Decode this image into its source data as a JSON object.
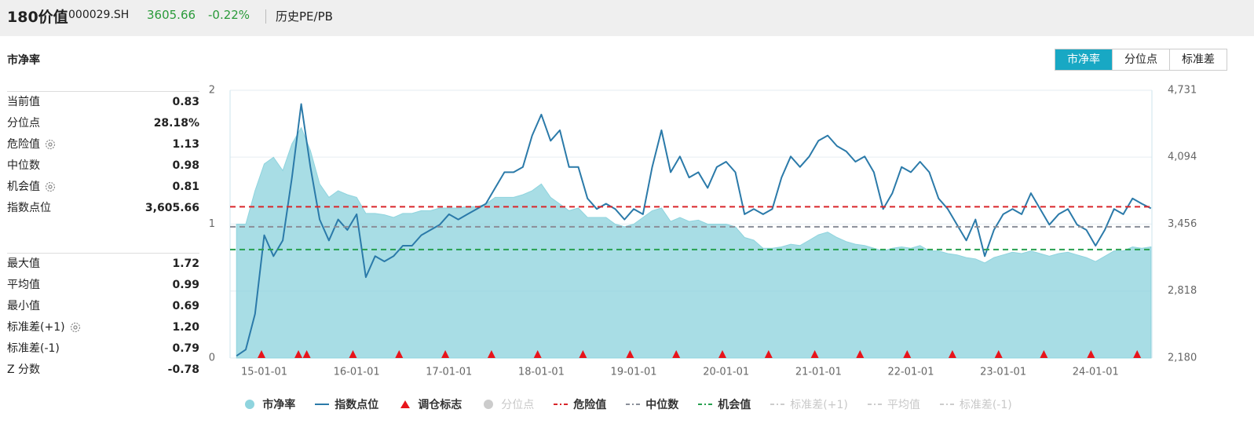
{
  "header": {
    "name": "180价值",
    "code": "000029.SH",
    "price": "3605.66",
    "change": "-0.22%",
    "link": "历史PE/PB"
  },
  "panel": {
    "title": "市净率",
    "tabs": [
      "市净率",
      "分位点",
      "标准差"
    ],
    "active_tab": 0,
    "stat_groups": [
      [
        {
          "label": "当前值",
          "value": "0.83",
          "gear": false
        },
        {
          "label": "分位点",
          "value": "28.18%",
          "gear": false
        },
        {
          "label": "危险值",
          "value": "1.13",
          "gear": true
        },
        {
          "label": "中位数",
          "value": "0.98",
          "gear": false
        },
        {
          "label": "机会值",
          "value": "0.81",
          "gear": true
        },
        {
          "label": "指数点位",
          "value": "3,605.66",
          "gear": false
        }
      ],
      [
        {
          "label": "最大值",
          "value": "1.72",
          "gear": false
        },
        {
          "label": "平均值",
          "value": "0.99",
          "gear": false
        },
        {
          "label": "最小值",
          "value": "0.69",
          "gear": false
        },
        {
          "label": "标准差(+1)",
          "value": "1.20",
          "gear": true
        },
        {
          "label": "标准差(-1)",
          "value": "0.79",
          "gear": false
        },
        {
          "label": "Z 分数",
          "value": "-0.78",
          "gear": false
        }
      ]
    ]
  },
  "chart_data": {
    "type": "area_line",
    "x": [
      2014.7,
      2014.8,
      2014.9,
      2015.0,
      2015.1,
      2015.2,
      2015.3,
      2015.4,
      2015.5,
      2015.6,
      2015.7,
      2015.8,
      2015.9,
      2016.0,
      2016.1,
      2016.2,
      2016.3,
      2016.4,
      2016.5,
      2016.6,
      2016.7,
      2016.8,
      2016.9,
      2017.0,
      2017.1,
      2017.2,
      2017.3,
      2017.4,
      2017.5,
      2017.6,
      2017.7,
      2017.8,
      2017.9,
      2018.0,
      2018.1,
      2018.2,
      2018.3,
      2018.4,
      2018.5,
      2018.6,
      2018.7,
      2018.8,
      2018.9,
      2019.0,
      2019.1,
      2019.2,
      2019.3,
      2019.4,
      2019.5,
      2019.6,
      2019.7,
      2019.8,
      2019.9,
      2020.0,
      2020.1,
      2020.2,
      2020.3,
      2020.4,
      2020.5,
      2020.6,
      2020.7,
      2020.8,
      2020.9,
      2021.0,
      2021.1,
      2021.2,
      2021.3,
      2021.4,
      2021.5,
      2021.6,
      2021.7,
      2021.8,
      2021.9,
      2022.0,
      2022.1,
      2022.2,
      2022.3,
      2022.4,
      2022.5,
      2022.6,
      2022.7,
      2022.8,
      2022.9,
      2023.0,
      2023.1,
      2023.2,
      2023.3,
      2023.4,
      2023.5,
      2023.6,
      2023.7,
      2023.8,
      2023.9,
      2024.0,
      2024.1,
      2024.2,
      2024.3,
      2024.4,
      2024.5,
      2024.6
    ],
    "xlim": [
      2014.63,
      2024.61
    ],
    "xticks": [
      {
        "value": 2015,
        "label": "15-01-01"
      },
      {
        "value": 2016,
        "label": "16-01-01"
      },
      {
        "value": 2017,
        "label": "17-01-01"
      },
      {
        "value": 2018,
        "label": "18-01-01"
      },
      {
        "value": 2019,
        "label": "19-01-01"
      },
      {
        "value": 2020,
        "label": "20-01-01"
      },
      {
        "value": 2021,
        "label": "21-01-01"
      },
      {
        "value": 2022,
        "label": "22-01-01"
      },
      {
        "value": 2023,
        "label": "23-01-01"
      },
      {
        "value": 2024,
        "label": "24-01-01"
      }
    ],
    "ylim": [
      0,
      2
    ],
    "yticks": [
      0,
      1,
      2
    ],
    "y2lim": [
      2180,
      4731
    ],
    "y2ticks": [
      {
        "value": 2180,
        "label": "2,180"
      },
      {
        "value": 2818,
        "label": "2,818"
      },
      {
        "value": 3456,
        "label": "3,456"
      },
      {
        "value": 4094,
        "label": "4,094"
      },
      {
        "value": 4731,
        "label": "4,731"
      }
    ],
    "grid": true,
    "series": [
      {
        "name": "市净率",
        "kind": "area",
        "color": "#8fd4de",
        "values": [
          1.0,
          1.0,
          1.25,
          1.45,
          1.5,
          1.4,
          1.6,
          1.72,
          1.55,
          1.3,
          1.2,
          1.25,
          1.22,
          1.2,
          1.08,
          1.08,
          1.07,
          1.05,
          1.08,
          1.08,
          1.1,
          1.1,
          1.12,
          1.12,
          1.12,
          1.13,
          1.13,
          1.15,
          1.2,
          1.2,
          1.2,
          1.22,
          1.25,
          1.3,
          1.2,
          1.15,
          1.1,
          1.12,
          1.05,
          1.05,
          1.05,
          1.0,
          0.98,
          1.0,
          1.05,
          1.1,
          1.12,
          1.02,
          1.05,
          1.02,
          1.03,
          1.0,
          1.0,
          1.0,
          0.98,
          0.9,
          0.88,
          0.82,
          0.82,
          0.83,
          0.85,
          0.84,
          0.88,
          0.92,
          0.94,
          0.9,
          0.87,
          0.85,
          0.84,
          0.82,
          0.8,
          0.82,
          0.83,
          0.82,
          0.84,
          0.8,
          0.8,
          0.78,
          0.77,
          0.75,
          0.74,
          0.71,
          0.75,
          0.77,
          0.79,
          0.78,
          0.8,
          0.78,
          0.76,
          0.78,
          0.79,
          0.77,
          0.75,
          0.72,
          0.76,
          0.8,
          0.8,
          0.83,
          0.82,
          0.83
        ]
      },
      {
        "name": "指数点位",
        "kind": "line",
        "axis": "y2",
        "color": "#2b7aa9",
        "values": [
          2200,
          2260,
          2600,
          3350,
          3150,
          3300,
          3900,
          4600,
          4000,
          3500,
          3300,
          3500,
          3400,
          3550,
          2950,
          3150,
          3100,
          3150,
          3250,
          3250,
          3350,
          3400,
          3450,
          3550,
          3500,
          3550,
          3600,
          3650,
          3800,
          3950,
          3950,
          4000,
          4300,
          4500,
          4250,
          4350,
          4000,
          4000,
          3700,
          3600,
          3650,
          3600,
          3500,
          3600,
          3550,
          4000,
          4350,
          3950,
          4100,
          3900,
          3950,
          3800,
          4000,
          4050,
          3950,
          3550,
          3600,
          3550,
          3600,
          3900,
          4100,
          4000,
          4100,
          4250,
          4300,
          4200,
          4150,
          4050,
          4100,
          3950,
          3600,
          3750,
          4000,
          3950,
          4050,
          3950,
          3700,
          3600,
          3450,
          3300,
          3500,
          3150,
          3400,
          3550,
          3600,
          3550,
          3750,
          3600,
          3450,
          3550,
          3600,
          3450,
          3400,
          3250,
          3400,
          3600,
          3550,
          3700,
          3650,
          3606
        ]
      },
      {
        "name": "调仓标志",
        "kind": "marker",
        "color": "#e8141b",
        "x": [
          2014.97,
          2015.37,
          2015.46,
          2015.96,
          2016.46,
          2016.96,
          2017.46,
          2017.96,
          2018.45,
          2018.96,
          2019.46,
          2019.96,
          2020.46,
          2020.96,
          2021.45,
          2021.96,
          2022.45,
          2022.95,
          2023.44,
          2023.95,
          2024.45
        ]
      },
      {
        "name": "分位点",
        "kind": "dot",
        "color": "#cccccc",
        "enabled": false
      }
    ],
    "reference_lines": [
      {
        "name": "危险值",
        "color": "#d9262b",
        "value": 1.13,
        "enabled": true
      },
      {
        "name": "中位数",
        "color": "#8a8f99",
        "value": 0.98,
        "enabled": true
      },
      {
        "name": "机会值",
        "color": "#27a04f",
        "value": 0.81,
        "enabled": true
      },
      {
        "name": "标准差(+1)",
        "color": "#cccccc",
        "value": 1.2,
        "enabled": false
      },
      {
        "name": "平均值",
        "color": "#cccccc",
        "value": 0.99,
        "enabled": false
      },
      {
        "name": "标准差(-1)",
        "color": "#cccccc",
        "value": 0.79,
        "enabled": false
      }
    ]
  }
}
